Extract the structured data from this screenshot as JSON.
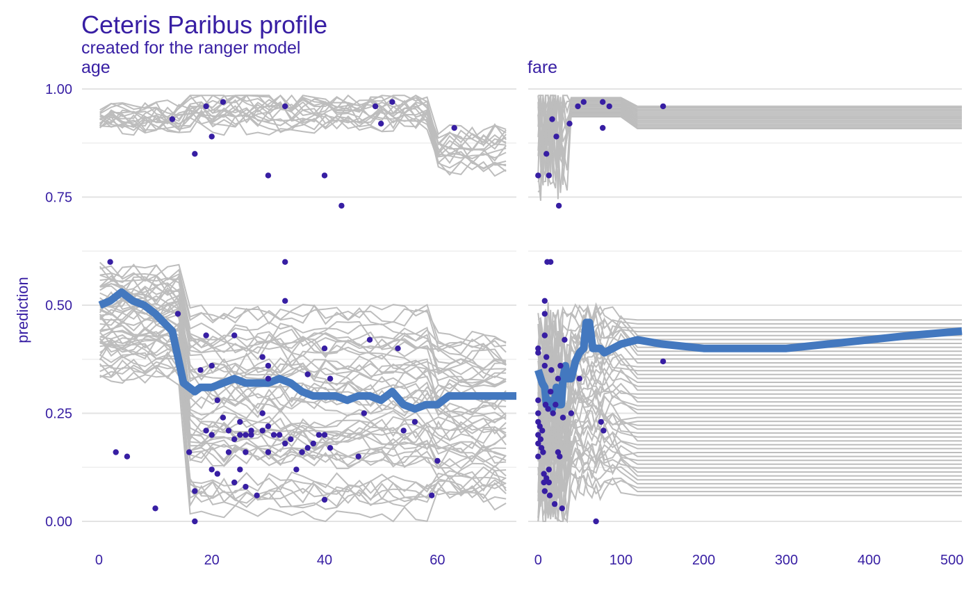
{
  "chart_data": {
    "type": "line",
    "title": "Ceteris Paribus profile",
    "subtitle": "created for the ranger model",
    "ylabel": "prediction",
    "ylim": [
      -0.05,
      1.0
    ],
    "yticks": [
      "0.00",
      "0.25",
      "0.50",
      "0.75",
      "1.00"
    ],
    "ytick_values": [
      0,
      0.25,
      0.5,
      0.75,
      1.0
    ],
    "grid": true,
    "colors": {
      "ice_lines": "#bdbdbd",
      "aggregate_line": "#4378bf",
      "observations": "#371ea3",
      "text": "#371ea3"
    },
    "panels": [
      {
        "variable": "age",
        "xlim": [
          -3,
          74
        ],
        "xticks": [
          "0",
          "20",
          "40",
          "60"
        ],
        "xtick_values": [
          0,
          20,
          40,
          60
        ],
        "aggregate_profile": {
          "x": [
            0.17,
            2,
            4,
            6,
            8,
            10,
            13,
            15,
            17,
            18,
            20,
            22,
            24,
            26,
            28,
            30,
            32,
            34,
            36,
            38,
            40,
            42,
            44,
            46,
            48,
            50,
            52,
            54,
            56,
            58,
            60,
            62,
            64,
            66,
            68,
            70,
            74
          ],
          "y": [
            0.5,
            0.51,
            0.53,
            0.51,
            0.5,
            0.48,
            0.44,
            0.32,
            0.3,
            0.31,
            0.31,
            0.32,
            0.33,
            0.32,
            0.32,
            0.32,
            0.33,
            0.32,
            0.3,
            0.29,
            0.29,
            0.29,
            0.28,
            0.29,
            0.29,
            0.28,
            0.3,
            0.27,
            0.26,
            0.27,
            0.27,
            0.29,
            0.29,
            0.29,
            0.29,
            0.29,
            0.29
          ]
        },
        "observations": [
          [
            2,
            0.6
          ],
          [
            3,
            0.16
          ],
          [
            5,
            0.15
          ],
          [
            10,
            0.03
          ],
          [
            13,
            0.93
          ],
          [
            14,
            0.48
          ],
          [
            16,
            0.16
          ],
          [
            17,
            0.85
          ],
          [
            17,
            0.07
          ],
          [
            17,
            0.0
          ],
          [
            18,
            0.35
          ],
          [
            19,
            0.96
          ],
          [
            19,
            0.43
          ],
          [
            19,
            0.21
          ],
          [
            20,
            0.89
          ],
          [
            20,
            0.36
          ],
          [
            20,
            0.2
          ],
          [
            20,
            0.12
          ],
          [
            21,
            0.28
          ],
          [
            21,
            0.11
          ],
          [
            22,
            0.97
          ],
          [
            22,
            0.24
          ],
          [
            23,
            0.21
          ],
          [
            23,
            0.16
          ],
          [
            24,
            0.43
          ],
          [
            24,
            0.19
          ],
          [
            24,
            0.09
          ],
          [
            25,
            0.23
          ],
          [
            25,
            0.2
          ],
          [
            25,
            0.12
          ],
          [
            26,
            0.2
          ],
          [
            26,
            0.16
          ],
          [
            26,
            0.08
          ],
          [
            27,
            0.21
          ],
          [
            27,
            0.2
          ],
          [
            28,
            0.06
          ],
          [
            29,
            0.38
          ],
          [
            29,
            0.25
          ],
          [
            29,
            0.21
          ],
          [
            30,
            0.8
          ],
          [
            30,
            0.36
          ],
          [
            30,
            0.33
          ],
          [
            30,
            0.22
          ],
          [
            30,
            0.16
          ],
          [
            31,
            0.2
          ],
          [
            32,
            0.2
          ],
          [
            33,
            0.96
          ],
          [
            33,
            0.6
          ],
          [
            33,
            0.51
          ],
          [
            33,
            0.18
          ],
          [
            34,
            0.19
          ],
          [
            35,
            0.12
          ],
          [
            36,
            0.16
          ],
          [
            37,
            0.34
          ],
          [
            37,
            0.17
          ],
          [
            38,
            0.18
          ],
          [
            39,
            0.2
          ],
          [
            40,
            0.8
          ],
          [
            40,
            0.4
          ],
          [
            40,
            0.2
          ],
          [
            40,
            0.05
          ],
          [
            41,
            0.33
          ],
          [
            41,
            0.17
          ],
          [
            43,
            0.73
          ],
          [
            46,
            0.15
          ],
          [
            47,
            0.25
          ],
          [
            48,
            0.42
          ],
          [
            49,
            0.96
          ],
          [
            50,
            0.92
          ],
          [
            52,
            0.97
          ],
          [
            53,
            0.4
          ],
          [
            54,
            0.21
          ],
          [
            56,
            0.23
          ],
          [
            59,
            0.06
          ],
          [
            60,
            0.14
          ],
          [
            63,
            0.91
          ]
        ]
      },
      {
        "variable": "fare",
        "xlim": [
          -12,
          512
        ],
        "xticks": [
          "0",
          "100",
          "200",
          "300",
          "400",
          "500"
        ],
        "xtick_values": [
          0,
          100,
          200,
          300,
          400,
          500
        ],
        "aggregate_profile": {
          "x": [
            0,
            5,
            8,
            10,
            13,
            15,
            17,
            20,
            22,
            25,
            28,
            30,
            33,
            35,
            40,
            45,
            50,
            55,
            58,
            62,
            66,
            75,
            80,
            90,
            100,
            120,
            150,
            200,
            250,
            300,
            350,
            400,
            450,
            512
          ],
          "y": [
            0.35,
            0.32,
            0.31,
            0.27,
            0.28,
            0.27,
            0.26,
            0.28,
            0.31,
            0.27,
            0.27,
            0.33,
            0.36,
            0.33,
            0.33,
            0.37,
            0.39,
            0.4,
            0.46,
            0.46,
            0.4,
            0.4,
            0.39,
            0.4,
            0.41,
            0.42,
            0.41,
            0.4,
            0.4,
            0.4,
            0.41,
            0.42,
            0.43,
            0.44
          ]
        },
        "observations": [
          [
            0,
            0.8
          ],
          [
            0,
            0.4
          ],
          [
            0,
            0.39
          ],
          [
            0,
            0.28
          ],
          [
            0,
            0.25
          ],
          [
            0,
            0.23
          ],
          [
            0,
            0.2
          ],
          [
            0,
            0.18
          ],
          [
            0,
            0.15
          ],
          [
            2,
            0.22
          ],
          [
            3,
            0.19
          ],
          [
            4,
            0.17
          ],
          [
            5,
            0.21
          ],
          [
            6,
            0.16
          ],
          [
            7,
            0.11
          ],
          [
            7,
            0.09
          ],
          [
            8,
            0.51
          ],
          [
            8,
            0.48
          ],
          [
            8,
            0.43
          ],
          [
            8,
            0.36
          ],
          [
            8,
            0.07
          ],
          [
            9,
            0.27
          ],
          [
            10,
            0.85
          ],
          [
            10,
            0.38
          ],
          [
            10,
            0.1
          ],
          [
            11,
            0.6
          ],
          [
            12,
            0.26
          ],
          [
            13,
            0.8
          ],
          [
            13,
            0.12
          ],
          [
            13,
            0.09
          ],
          [
            14,
            0.06
          ],
          [
            15,
            0.6
          ],
          [
            15,
            0.3
          ],
          [
            16,
            0.35
          ],
          [
            17,
            0.93
          ],
          [
            18,
            0.25
          ],
          [
            20,
            0.04
          ],
          [
            21,
            0.27
          ],
          [
            22,
            0.89
          ],
          [
            24,
            0.33
          ],
          [
            24,
            0.16
          ],
          [
            25,
            0.73
          ],
          [
            26,
            0.15
          ],
          [
            27,
            0.36
          ],
          [
            29,
            0.03
          ],
          [
            30,
            0.24
          ],
          [
            32,
            0.42
          ],
          [
            38,
            0.92
          ],
          [
            40,
            0.25
          ],
          [
            48,
            0.96
          ],
          [
            50,
            0.33
          ],
          [
            55,
            0.97
          ],
          [
            70,
            0.0
          ],
          [
            76,
            0.23
          ],
          [
            78,
            0.97
          ],
          [
            78,
            0.91
          ],
          [
            79,
            0.21
          ],
          [
            86,
            0.96
          ],
          [
            151,
            0.96
          ],
          [
            151,
            0.37
          ]
        ]
      }
    ]
  }
}
